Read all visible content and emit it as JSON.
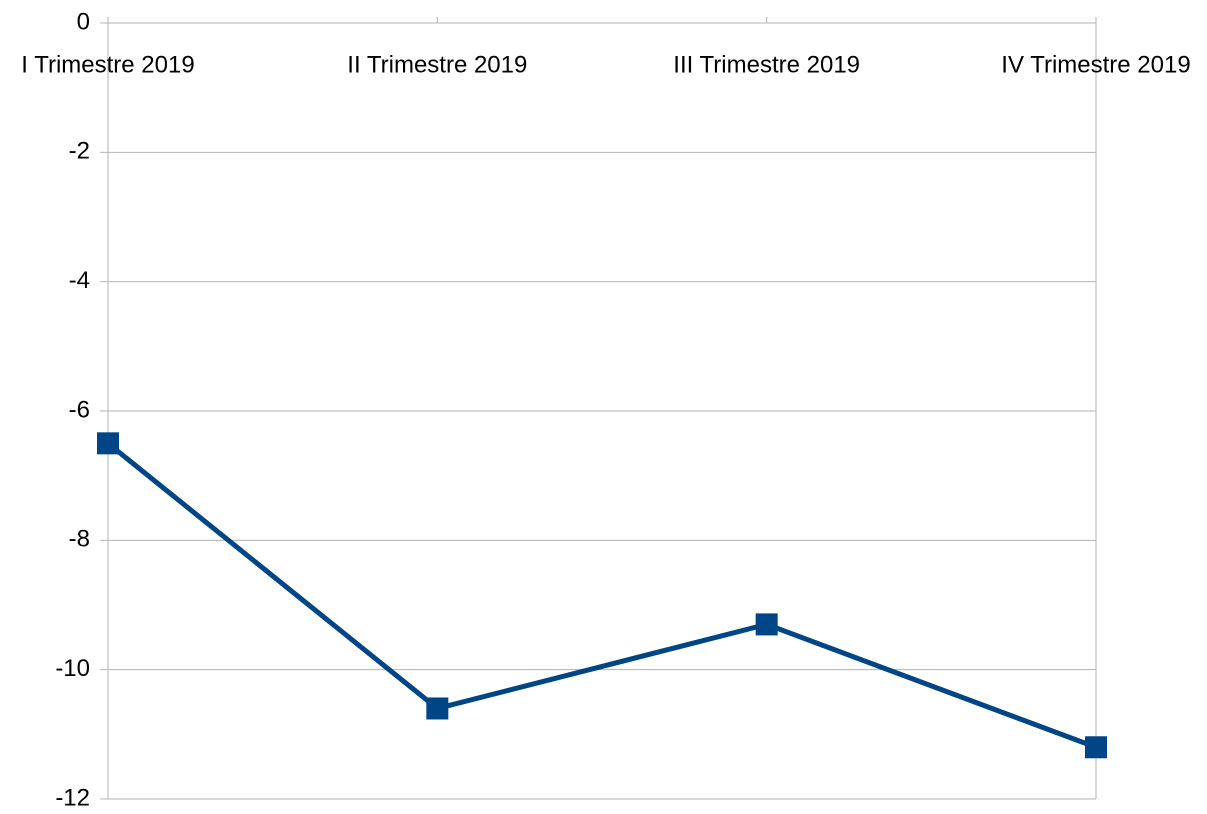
{
  "chart_data": {
    "type": "line",
    "categories": [
      "I Trimestre 2019",
      "II Trimestre 2019",
      "III Trimestre 2019",
      "IV Trimestre 2019"
    ],
    "series": [
      {
        "color": "#004586",
        "values": [
          -6.5,
          -10.6,
          -9.3,
          -11.2
        ]
      }
    ],
    "ylim": [
      -12,
      0
    ],
    "yticks": [
      0,
      -2,
      -4,
      -6,
      -8,
      -10,
      -12
    ],
    "grid": true
  }
}
